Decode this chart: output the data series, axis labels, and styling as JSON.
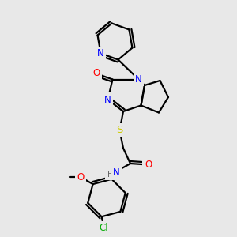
{
  "bg_color": "#e8e8e8",
  "atom_colors": {
    "N": "#0000ff",
    "O": "#ff0000",
    "S": "#cccc00",
    "Cl": "#00aa00",
    "C": "#000000",
    "H": "#666666"
  },
  "bond_color": "#000000",
  "bond_width": 1.6,
  "font_size_atom": 8.5
}
